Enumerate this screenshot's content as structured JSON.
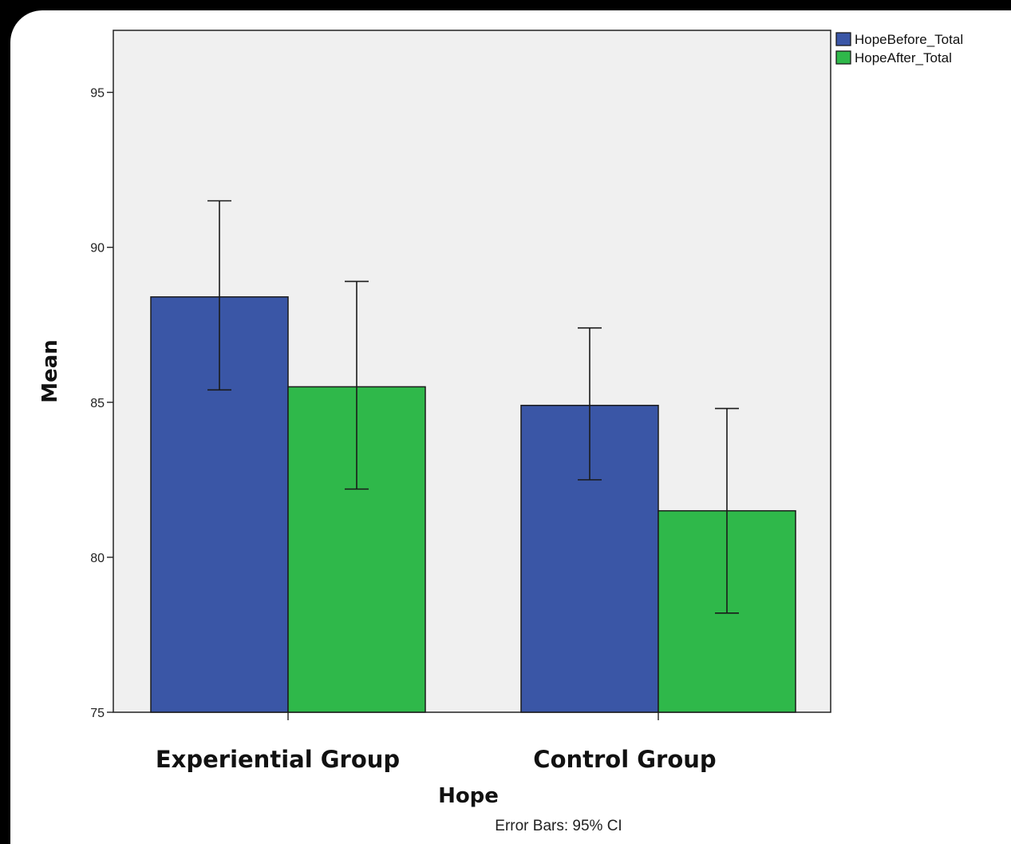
{
  "chart_data": {
    "type": "bar",
    "categories": [
      "Experiential Group",
      "Control Group"
    ],
    "series": [
      {
        "name": "HopeBefore_Total",
        "color": "#3a56a6",
        "values": [
          88.4,
          84.9
        ],
        "ci_low": [
          85.4,
          82.5
        ],
        "ci_high": [
          91.5,
          87.4
        ]
      },
      {
        "name": "HopeAfter_Total",
        "color": "#2fb84a",
        "values": [
          85.5,
          81.5
        ],
        "ci_low": [
          82.2,
          78.2
        ],
        "ci_high": [
          88.9,
          84.8
        ]
      }
    ],
    "xlabel": "Hope",
    "ylabel": "Mean",
    "ylim": [
      75,
      97
    ],
    "yticks": [
      75,
      80,
      85,
      90,
      95
    ],
    "footnote": "Error Bars: 95% CI",
    "legend_position": "top-right",
    "plot_background": "#f0f0f0"
  }
}
